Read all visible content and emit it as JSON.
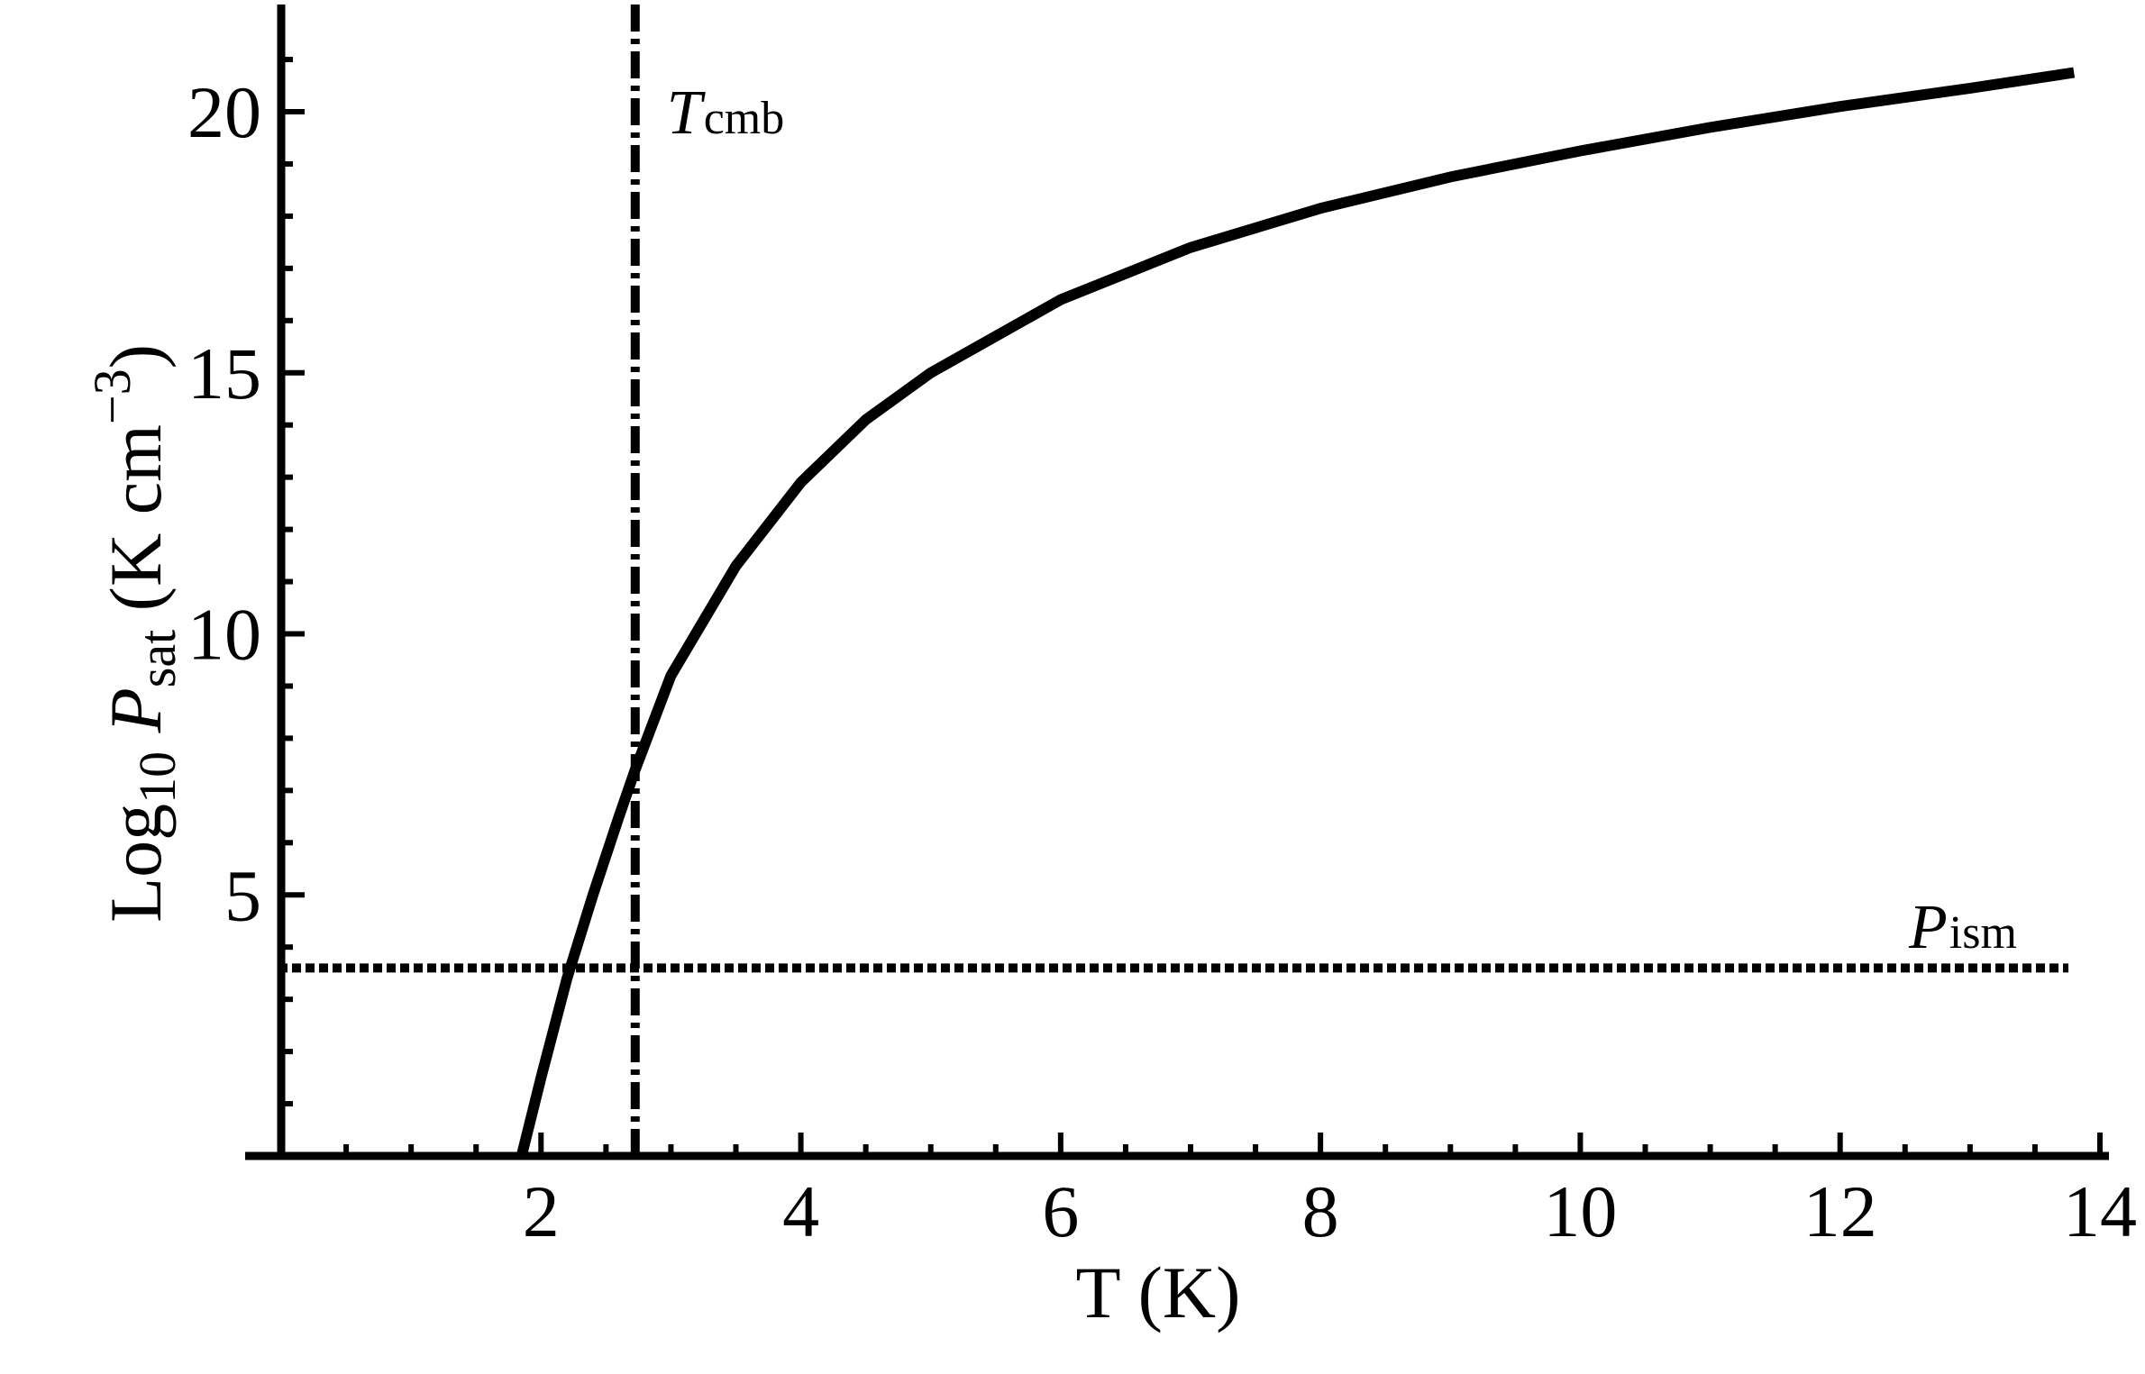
{
  "chart_data": {
    "type": "line",
    "xlabel": "T (K)",
    "ylabel": {
      "prefix": "Log",
      "prefix_sub": "10",
      "var": "P",
      "var_sub": "sat",
      "units_pre": "(K cm",
      "units_sup": "−3",
      "units_post": ")"
    },
    "xlim": [
      0,
      14
    ],
    "ylim": [
      0,
      22
    ],
    "xticks": [
      2,
      4,
      6,
      8,
      10,
      12,
      14
    ],
    "yticks": [
      5,
      10,
      15,
      20
    ],
    "series": [
      {
        "style": "solid",
        "x": [
          1.85,
          2.0,
          2.2,
          2.4,
          2.6,
          2.725,
          3.0,
          3.5,
          4.0,
          4.5,
          5.0,
          6.0,
          7.0,
          8.0,
          9.0,
          10.0,
          11.0,
          12.0,
          13.0,
          13.8
        ],
        "y": [
          0.0,
          1.5,
          3.4,
          5.0,
          6.5,
          7.4,
          9.2,
          11.3,
          12.9,
          14.1,
          15.0,
          16.4,
          17.4,
          18.15,
          18.75,
          19.25,
          19.7,
          20.1,
          20.45,
          20.75
        ]
      }
    ],
    "reference_lines": [
      {
        "orientation": "vertical",
        "x": 2.725,
        "style": "dash-dot",
        "label_var": "T",
        "label_sub": "cmb"
      },
      {
        "orientation": "horizontal",
        "y": 3.6,
        "style": "dotted",
        "label_var": "P",
        "label_sub": "ism"
      }
    ],
    "grid": false,
    "legend": "none"
  }
}
